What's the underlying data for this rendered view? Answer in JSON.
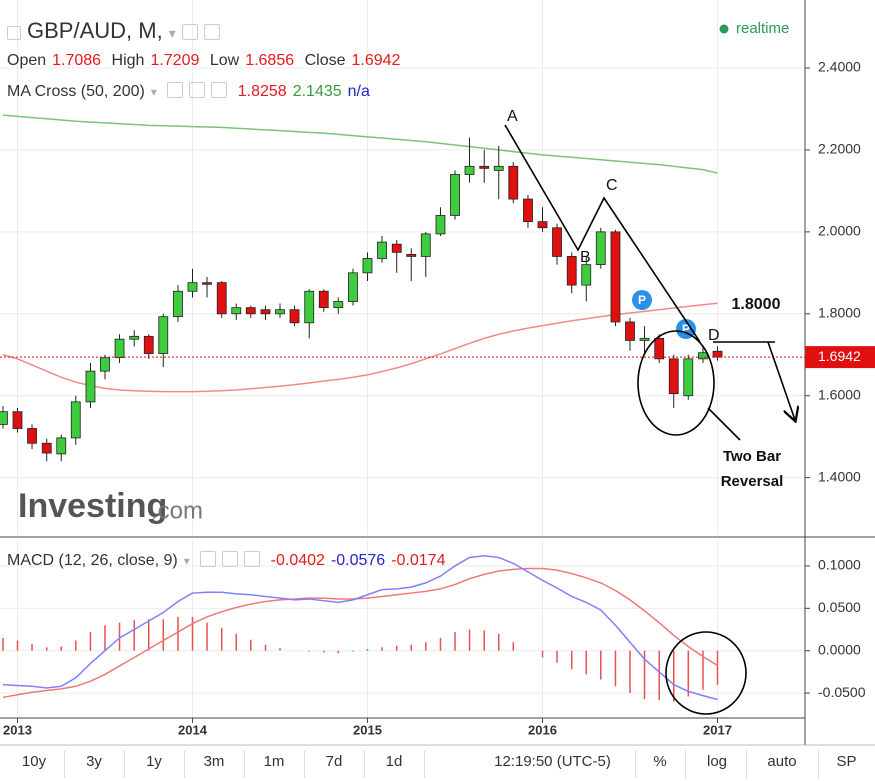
{
  "header": {
    "symbol": "GBP/AUD, M,",
    "realtime": "realtime",
    "ohlc_labels": [
      "Open",
      "High",
      "Low",
      "Close"
    ],
    "indicator": "MA Cross (50, 200)",
    "indicator_na": "n/a",
    "watermark": "Investing",
    "watermark_suffix": ".com"
  },
  "chart_data": [
    {
      "type": "candlestick",
      "x": [
        2012.917,
        2013.0,
        2013.083,
        2013.167,
        2013.25,
        2013.333,
        2013.417,
        2013.5,
        2013.583,
        2013.667,
        2013.75,
        2013.833,
        2013.917,
        2014.0,
        2014.083,
        2014.167,
        2014.25,
        2014.333,
        2014.417,
        2014.5,
        2014.583,
        2014.667,
        2014.75,
        2014.833,
        2014.917,
        2015.0,
        2015.083,
        2015.167,
        2015.25,
        2015.333,
        2015.417,
        2015.5,
        2015.583,
        2015.667,
        2015.75,
        2015.833,
        2015.917,
        2016.0,
        2016.083,
        2016.167,
        2016.25,
        2016.333,
        2016.417,
        2016.5,
        2016.583,
        2016.667,
        2016.75,
        2016.833,
        2016.917,
        2017.0
      ],
      "open": [
        1.53,
        1.561,
        1.52,
        1.484,
        1.458,
        1.497,
        1.585,
        1.66,
        1.693,
        1.738,
        1.745,
        1.703,
        1.793,
        1.855,
        1.876,
        1.876,
        1.8,
        1.815,
        1.81,
        1.8,
        1.81,
        1.778,
        1.855,
        1.815,
        1.83,
        1.9,
        1.935,
        1.97,
        1.945,
        1.94,
        1.995,
        2.04,
        2.14,
        2.16,
        2.15,
        2.16,
        2.08,
        2.025,
        2.01,
        1.94,
        1.87,
        1.92,
        2.0,
        1.78,
        1.735,
        1.74,
        1.69,
        1.6,
        1.69,
        1.7086
      ],
      "high": [
        1.575,
        1.57,
        1.53,
        1.495,
        1.505,
        1.6,
        1.68,
        1.7,
        1.75,
        1.76,
        1.75,
        1.8,
        1.87,
        1.91,
        1.89,
        1.88,
        1.825,
        1.82,
        1.82,
        1.825,
        1.82,
        1.86,
        1.86,
        1.84,
        1.91,
        1.95,
        1.99,
        1.98,
        1.96,
        2.0,
        2.06,
        2.15,
        2.23,
        2.2,
        2.21,
        2.17,
        2.09,
        2.06,
        2.02,
        1.95,
        1.94,
        2.01,
        2.005,
        1.79,
        1.77,
        1.75,
        1.7,
        1.7,
        1.72,
        1.7209
      ],
      "low": [
        1.52,
        1.51,
        1.47,
        1.44,
        1.44,
        1.48,
        1.57,
        1.64,
        1.68,
        1.72,
        1.69,
        1.67,
        1.78,
        1.84,
        1.84,
        1.79,
        1.785,
        1.79,
        1.785,
        1.79,
        1.77,
        1.74,
        1.805,
        1.8,
        1.82,
        1.88,
        1.925,
        1.9,
        1.88,
        1.89,
        1.99,
        2.03,
        2.12,
        2.12,
        2.08,
        2.07,
        2.01,
        2.0,
        1.92,
        1.85,
        1.83,
        1.91,
        1.77,
        1.71,
        1.7,
        1.68,
        1.57,
        1.59,
        1.68,
        1.6856
      ],
      "close": [
        1.561,
        1.52,
        1.484,
        1.46,
        1.497,
        1.585,
        1.66,
        1.693,
        1.738,
        1.745,
        1.703,
        1.793,
        1.855,
        1.876,
        1.872,
        1.8,
        1.815,
        1.8,
        1.8,
        1.81,
        1.778,
        1.855,
        1.815,
        1.83,
        1.9,
        1.935,
        1.975,
        1.95,
        1.94,
        1.995,
        2.04,
        2.14,
        2.16,
        2.155,
        2.16,
        2.08,
        2.025,
        2.01,
        1.94,
        1.87,
        1.92,
        2.0,
        1.78,
        1.735,
        1.74,
        1.69,
        1.605,
        1.69,
        1.705,
        1.6942
      ],
      "up_color": "#3dcc3d",
      "down_color": "#e01010",
      "lines": [
        {
          "color": "#f08a8a",
          "values": [
            1.7,
            1.69,
            1.675,
            1.66,
            1.645,
            1.633,
            1.625,
            1.618,
            1.614,
            1.612,
            1.611,
            1.61,
            1.61,
            1.61,
            1.611,
            1.612,
            1.614,
            1.617,
            1.62,
            1.623,
            1.627,
            1.631,
            1.636,
            1.64,
            1.645,
            1.651,
            1.659,
            1.668,
            1.678,
            1.69,
            1.702,
            1.715,
            1.728,
            1.74,
            1.75,
            1.758,
            1.765,
            1.771,
            1.777,
            1.783,
            1.788,
            1.793,
            1.798,
            1.802,
            1.806,
            1.81,
            1.814,
            1.818,
            1.822,
            1.8258
          ]
        },
        {
          "color": "#7cc27c",
          "values": [
            2.285,
            2.282,
            2.279,
            2.276,
            2.273,
            2.27,
            2.268,
            2.266,
            2.264,
            2.262,
            2.26,
            2.259,
            2.258,
            2.257,
            2.256,
            2.255,
            2.253,
            2.251,
            2.249,
            2.247,
            2.245,
            2.243,
            2.241,
            2.238,
            2.235,
            2.232,
            2.229,
            2.226,
            2.223,
            2.22,
            2.216,
            2.212,
            2.208,
            2.204,
            2.2,
            2.196,
            2.192,
            2.188,
            2.185,
            2.182,
            2.179,
            2.176,
            2.173,
            2.17,
            2.167,
            2.164,
            2.16,
            2.156,
            2.152,
            2.1435
          ]
        }
      ],
      "xlim": [
        2012.9,
        2017.5
      ],
      "xticks": [
        2013,
        2014,
        2015,
        2016,
        2017
      ],
      "ylim": [
        1.26,
        2.566
      ],
      "yticks": [
        {
          "value": 1.4,
          "label": "1.4000"
        },
        {
          "value": 1.6,
          "label": "1.6000"
        },
        {
          "value": 1.8,
          "label": "1.8000"
        },
        {
          "value": 2.0,
          "label": "2.0000"
        },
        {
          "value": 2.2,
          "label": "2.2000"
        },
        {
          "value": 2.4,
          "label": "2.4000"
        }
      ],
      "grid": true,
      "annotations": [
        "A",
        "B",
        "C",
        "D",
        "1.8000",
        "Two Bar",
        "Reversal"
      ],
      "markers": [
        "P",
        "P"
      ]
    },
    {
      "type": "macd",
      "title": "MACD (12, 26, close, 9)",
      "histogram": {
        "color": "#e85050",
        "values": [
          0.015,
          0.012,
          0.008,
          0.004,
          0.005,
          0.012,
          0.022,
          0.03,
          0.033,
          0.036,
          0.037,
          0.037,
          0.04,
          0.04,
          0.033,
          0.027,
          0.02,
          0.013,
          0.007,
          0.003,
          0.0,
          -0.001,
          -0.002,
          -0.003,
          -0.001,
          0.002,
          0.004,
          0.006,
          0.007,
          0.01,
          0.015,
          0.022,
          0.025,
          0.024,
          0.02,
          0.01,
          0.0,
          -0.008,
          -0.014,
          -0.022,
          -0.028,
          -0.034,
          -0.042,
          -0.05,
          -0.057,
          -0.058,
          -0.06,
          -0.054,
          -0.046,
          -0.0402
        ]
      },
      "macd": {
        "color": "#8080ff",
        "values": [
          -0.04,
          -0.041,
          -0.042,
          -0.044,
          -0.042,
          -0.032,
          -0.015,
          0.0,
          0.015,
          0.025,
          0.035,
          0.045,
          0.058,
          0.068,
          0.069,
          0.069,
          0.067,
          0.066,
          0.064,
          0.062,
          0.06,
          0.061,
          0.059,
          0.057,
          0.06,
          0.066,
          0.072,
          0.073,
          0.075,
          0.08,
          0.088,
          0.1,
          0.11,
          0.112,
          0.11,
          0.103,
          0.093,
          0.083,
          0.074,
          0.064,
          0.057,
          0.048,
          0.03,
          0.01,
          -0.01,
          -0.025,
          -0.04,
          -0.048,
          -0.053,
          -0.0576
        ]
      },
      "signal": {
        "color": "#f07878",
        "values": [
          -0.055,
          -0.052,
          -0.049,
          -0.047,
          -0.045,
          -0.042,
          -0.036,
          -0.028,
          -0.018,
          -0.008,
          0.002,
          0.012,
          0.022,
          0.032,
          0.04,
          0.046,
          0.051,
          0.055,
          0.058,
          0.06,
          0.061,
          0.062,
          0.062,
          0.061,
          0.061,
          0.062,
          0.064,
          0.066,
          0.068,
          0.07,
          0.073,
          0.078,
          0.085,
          0.09,
          0.094,
          0.096,
          0.097,
          0.097,
          0.095,
          0.091,
          0.086,
          0.08,
          0.071,
          0.06,
          0.047,
          0.033,
          0.018,
          0.005,
          -0.007,
          -0.0174
        ]
      },
      "ylim": [
        -0.0794,
        0.1306
      ],
      "yticks": [
        {
          "value": -0.05,
          "label": "-0.0500"
        },
        {
          "value": 0,
          "label": "0.0000"
        },
        {
          "value": 0.05,
          "label": "0.0500"
        },
        {
          "value": 0.1,
          "label": "0.1000"
        }
      ]
    }
  ],
  "toolbar": {
    "ranges": [
      "10y",
      "3y",
      "1y",
      "3m",
      "1m",
      "7d",
      "1d"
    ],
    "time": "12:19:50 (UTC-5)",
    "options": [
      "%",
      "log",
      "auto",
      "SP"
    ]
  }
}
